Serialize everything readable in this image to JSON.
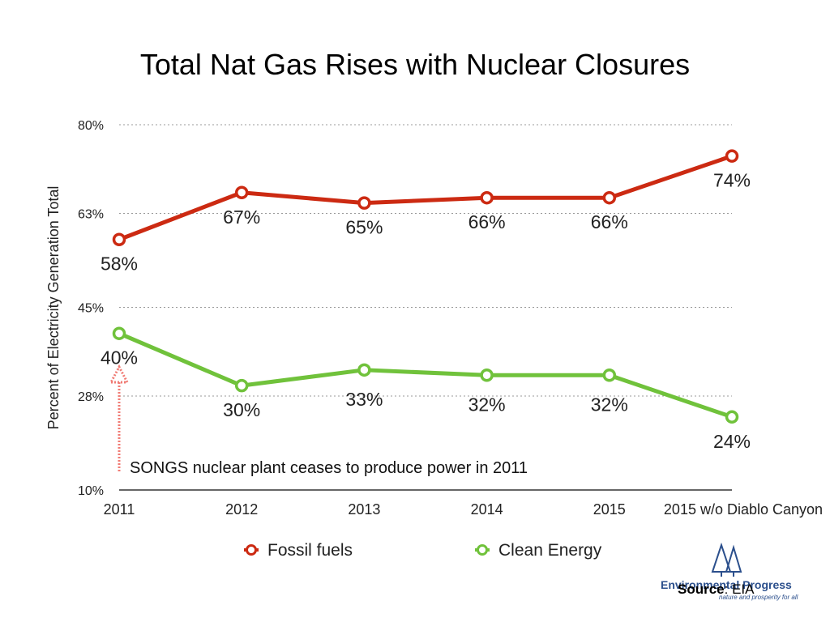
{
  "chart_data": {
    "type": "line",
    "title": "Total Nat Gas Rises with Nuclear Closures",
    "ylabel": "Percent of Electricity Generation Total",
    "xlabel": "",
    "ylim": [
      10,
      80
    ],
    "y_ticks": [
      10,
      28,
      45,
      63,
      80
    ],
    "y_tick_labels": [
      "10%",
      "28%",
      "45%",
      "63%",
      "80%"
    ],
    "categories": [
      "2011",
      "2012",
      "2013",
      "2014",
      "2015",
      "2015 w/o Diablo Canyon"
    ],
    "series": [
      {
        "name": "Fossil fuels",
        "color": "#cc2a12",
        "values": [
          58,
          67,
          65,
          66,
          66,
          74
        ],
        "labels": [
          "58%",
          "67%",
          "65%",
          "66%",
          "66%",
          "74%"
        ],
        "label_position": [
          "below",
          "below",
          "below",
          "below",
          "below",
          "below"
        ]
      },
      {
        "name": "Clean Energy",
        "color": "#70c23b",
        "values": [
          40,
          30,
          33,
          32,
          32,
          24
        ],
        "labels": [
          "40%",
          "30%",
          "33%",
          "32%",
          "32%",
          "24%"
        ],
        "label_position": [
          "below",
          "below",
          "above",
          "above",
          "above",
          "below"
        ]
      }
    ],
    "grid": true,
    "legend": "bottom",
    "annotations": [
      {
        "text": "SONGS nuclear plant ceases to produce power in 2011",
        "arrow_color": "#f07b74",
        "category": "2011"
      }
    ]
  },
  "footer": {
    "logo_name": "Environmental Progress",
    "logo_tagline": "nature and prosperity for all",
    "logo_icon": "twin-tree-icon",
    "source_bold": "Source",
    "source_rest": ": EIA"
  }
}
